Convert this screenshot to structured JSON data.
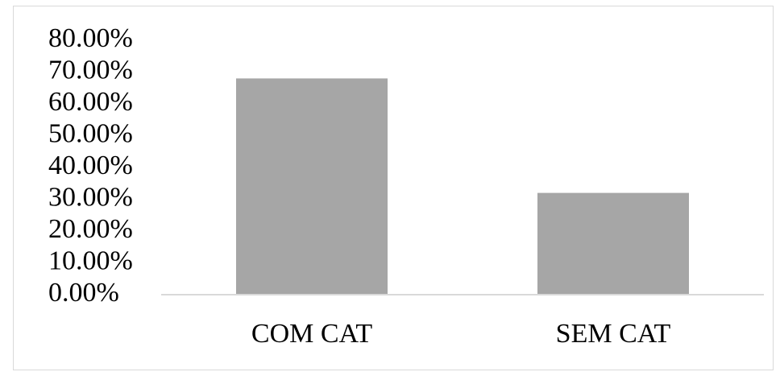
{
  "chart_data": {
    "type": "bar",
    "title": "",
    "xlabel": "",
    "ylabel": "",
    "categories": [
      "COM CAT",
      "SEM CAT"
    ],
    "values": [
      0.68,
      0.32
    ],
    "ylim": [
      0,
      0.8
    ],
    "y_ticks": [
      0,
      0.1,
      0.2,
      0.3,
      0.4,
      0.5,
      0.6,
      0.7,
      0.8
    ],
    "y_tick_labels": [
      "0.00%",
      "10.00%",
      "20.00%",
      "30.00%",
      "40.00%",
      "50.00%",
      "60.00%",
      "70.00%",
      "80.00%"
    ],
    "grid": false,
    "legend": "none",
    "bar_color": "#a6a6a6",
    "axis_color": "#d9d9d9"
  }
}
